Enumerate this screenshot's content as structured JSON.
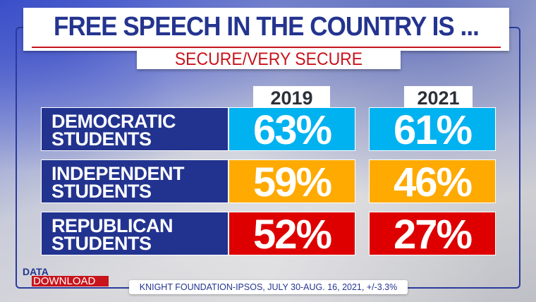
{
  "title": "FREE SPEECH IN THE COUNTRY IS ...",
  "subtitle": "SECURE/VERY SECURE",
  "years": [
    "2019",
    "2021"
  ],
  "rows": [
    {
      "label1": "DEMOCRATIC",
      "label2": "STUDENTS",
      "v2019": "63%",
      "v2021": "61%",
      "color": "#00b2f0"
    },
    {
      "label1": "INDEPENDENT",
      "label2": "STUDENTS",
      "v2019": "59%",
      "v2021": "46%",
      "color": "#ffaa00"
    },
    {
      "label1": "REPUBLICAN",
      "label2": "STUDENTS",
      "v2019": "52%",
      "v2021": "27%",
      "color": "#de0000"
    }
  ],
  "brand": {
    "line1": "DATA_",
    "line2": "DOWNLOAD"
  },
  "source": "KNIGHT FOUNDATION-IPSOS, JULY 30-AUG. 16, 2021, +/-3.3%"
}
